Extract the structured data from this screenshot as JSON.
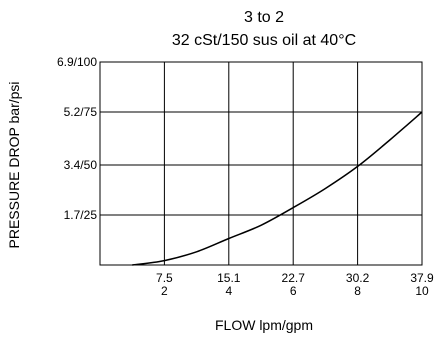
{
  "chart_data": {
    "type": "line",
    "title": "3 to 2",
    "subtitle": "32 cSt/150 sus oil at 40°C",
    "xlabel": "FLOW lpm/gpm",
    "ylabel": "PRESSURE DROP bar/psi",
    "xlim": [
      0,
      10
    ],
    "ylim": [
      0,
      6.9
    ],
    "grid": true,
    "x_ticks": [
      {
        "value": 2,
        "label_top": "7.5",
        "label_bottom": "2"
      },
      {
        "value": 4,
        "label_top": "15.1",
        "label_bottom": "4"
      },
      {
        "value": 6,
        "label_top": "22.7",
        "label_bottom": "6"
      },
      {
        "value": 8,
        "label_top": "30.2",
        "label_bottom": "8"
      },
      {
        "value": 10,
        "label_top": "37.9",
        "label_bottom": "10"
      }
    ],
    "y_ticks": [
      {
        "value": 1.7,
        "label": "1.7/25"
      },
      {
        "value": 3.4,
        "label": "3.4/50"
      },
      {
        "value": 5.2,
        "label": "5.2/75"
      },
      {
        "value": 6.9,
        "label": "6.9/100"
      }
    ],
    "series": [
      {
        "x": [
          1.0,
          2.0,
          3.0,
          4.0,
          5.0,
          6.0,
          7.0,
          8.0,
          9.0,
          10.0
        ],
        "y": [
          0.0,
          0.15,
          0.45,
          0.9,
          1.35,
          1.95,
          2.6,
          3.35,
          4.25,
          5.2
        ]
      }
    ],
    "colors": {
      "line": "#000000",
      "grid": "#000000"
    }
  }
}
